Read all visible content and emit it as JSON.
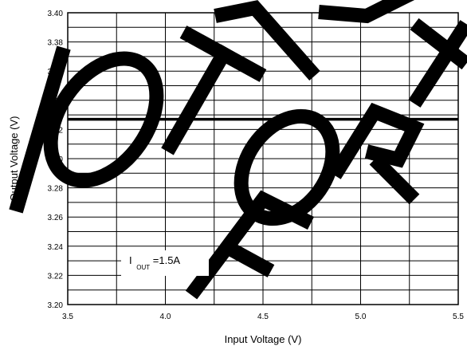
{
  "chart_data": {
    "type": "line",
    "title": "",
    "xlabel": "Input Voltage (V)",
    "ylabel": "Output Voltage (V)",
    "xlim": [
      3.5,
      5.5
    ],
    "ylim": [
      3.2,
      3.4
    ],
    "xticks": [
      "3.5",
      "4.0",
      "4.5",
      "5.0",
      "5.5"
    ],
    "yticks": [
      "3.20",
      "3.22",
      "3.24",
      "3.26",
      "3.28",
      "3.30",
      "3.32",
      "3.34",
      "3.36",
      "3.38",
      "3.40"
    ],
    "grid": true,
    "series": [
      {
        "x": [
          3.5,
          5.5
        ],
        "values": [
          3.327,
          3.327
        ]
      }
    ],
    "annotation": {
      "main": "I",
      "sub": "OUT",
      "rest": "=1.5A"
    }
  },
  "watermark": "NOT FOR NEW DESIGN",
  "colors": {
    "series": "#000000",
    "grid": "#000000",
    "watermark": "#000000"
  }
}
